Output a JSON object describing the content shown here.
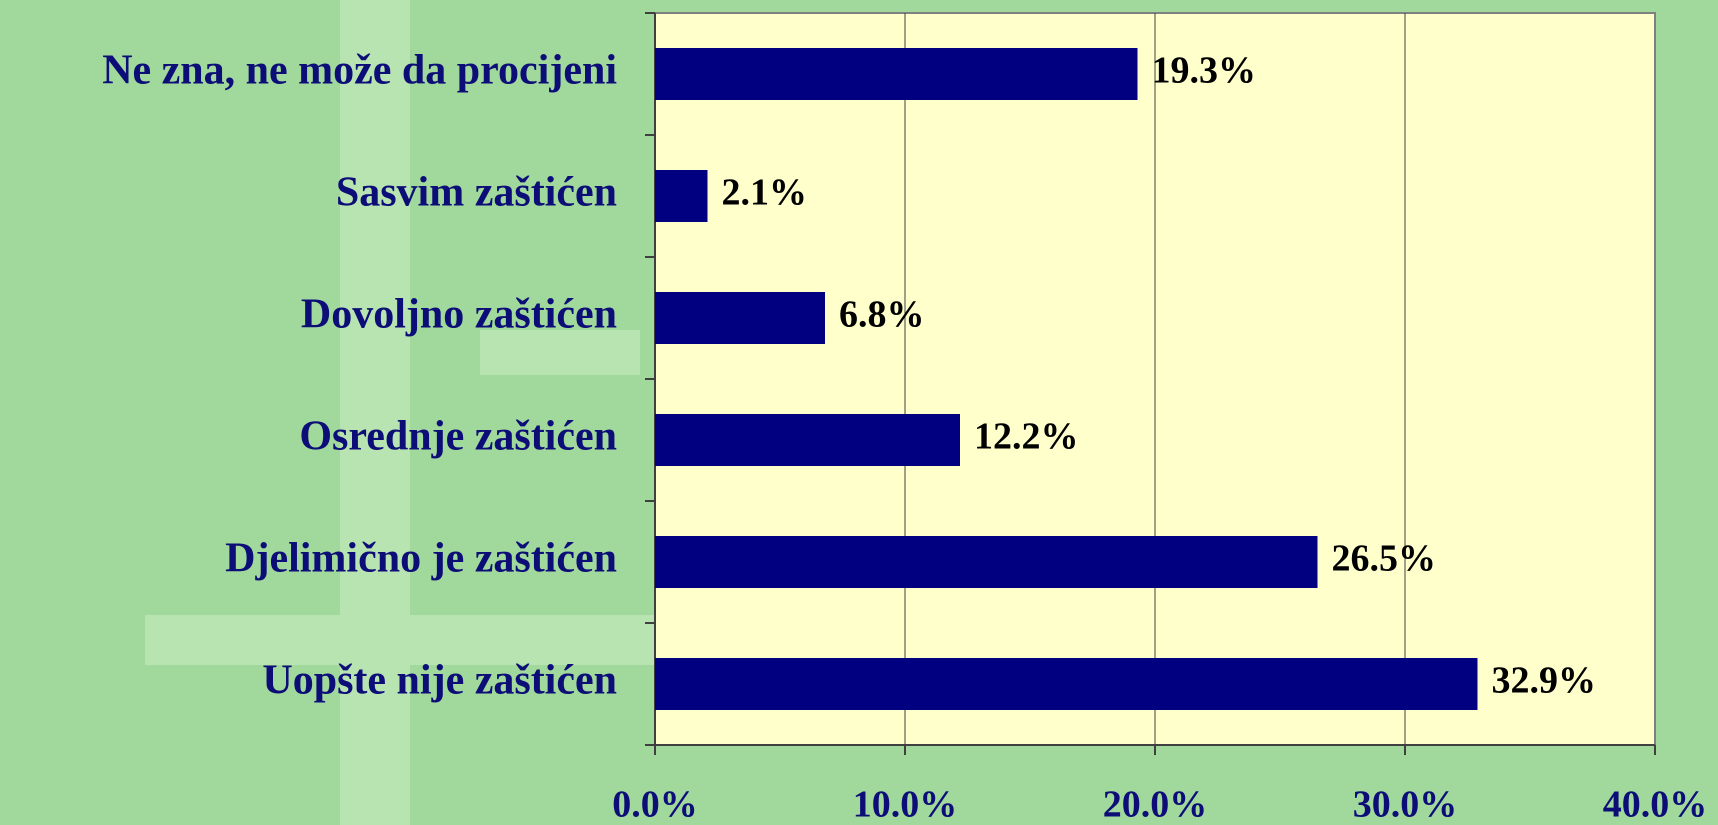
{
  "chart_data": {
    "type": "bar",
    "orientation": "horizontal",
    "categories": [
      "Ne zna, ne može da procijeni",
      "Sasvim zaštićen",
      "Dovoljno zaštićen",
      "Osrednje zaštićen",
      "Djelimično je zaštićen",
      "Uopšte nije zaštićen"
    ],
    "values": [
      19.3,
      2.1,
      6.8,
      12.2,
      26.5,
      32.9
    ],
    "value_labels": [
      "19.3%",
      "2.1%",
      "6.8%",
      "12.2%",
      "26.5%",
      "32.9%"
    ],
    "color": "#000080",
    "xlim": [
      0,
      40
    ],
    "xticks": [
      {
        "value": 0,
        "label": "0.0%"
      },
      {
        "value": 10,
        "label": "10.0%"
      },
      {
        "value": 20,
        "label": "20.0%"
      },
      {
        "value": 30,
        "label": "30.0%"
      },
      {
        "value": 40,
        "label": "40.0%"
      }
    ],
    "grid": true
  }
}
